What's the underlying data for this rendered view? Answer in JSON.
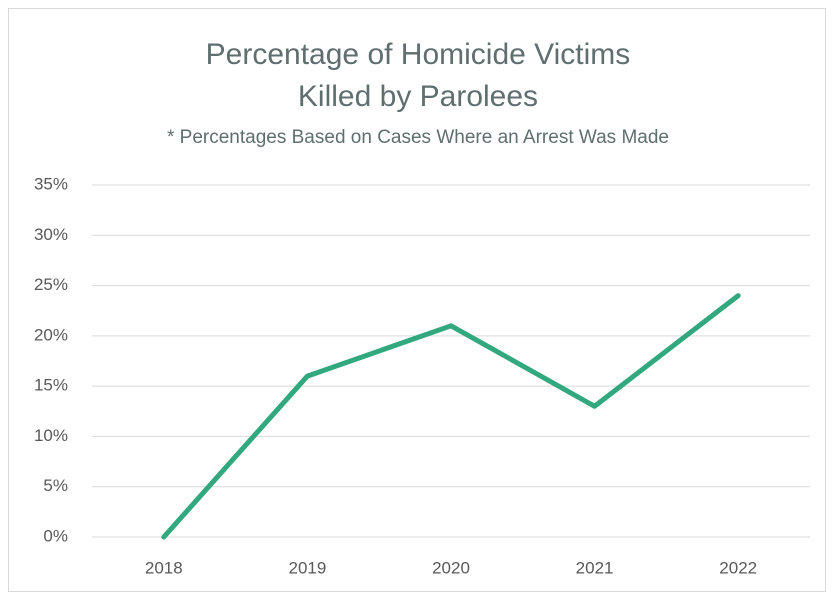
{
  "chart_data": {
    "type": "line",
    "title": "Percentage of Homicide Victims Killed by Parolees",
    "subtitle": "* Percentages Based on Cases Where an Arrest Was Made",
    "categories": [
      "2018",
      "2019",
      "2020",
      "2021",
      "2022"
    ],
    "series": [
      {
        "color": "#32a87e",
        "values": [
          0,
          16,
          21,
          13,
          24
        ]
      }
    ],
    "ylim": [
      0,
      35
    ],
    "yticks": [
      {
        "value": 0,
        "label": "0%"
      },
      {
        "value": 5,
        "label": "5%"
      },
      {
        "value": 10,
        "label": "10%"
      },
      {
        "value": 15,
        "label": "15%"
      },
      {
        "value": 20,
        "label": "20%"
      },
      {
        "value": 25,
        "label": "25%"
      },
      {
        "value": 30,
        "label": "30%"
      },
      {
        "value": 35,
        "label": "35%"
      }
    ],
    "grid": true
  }
}
